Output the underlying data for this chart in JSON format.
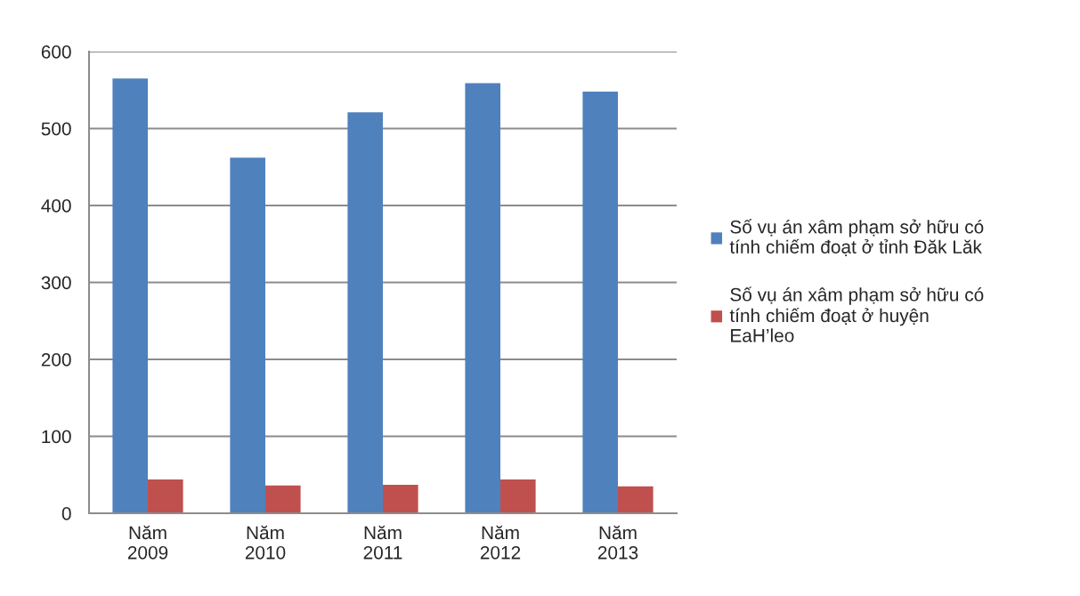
{
  "chart_data": {
    "type": "bar",
    "categories": [
      "Năm 2009",
      "Năm 2010",
      "Năm 2011",
      "Năm 2012",
      "Năm 2013"
    ],
    "series": [
      {
        "name": "Số vụ án xâm phạm sở hữu có tính chiếm đoạt ở tỉnh Đăk Lăk",
        "color": "#4f81bd",
        "values": [
          565,
          462,
          521,
          559,
          548
        ]
      },
      {
        "name": "Số vụ án xâm phạm sở hữu có tính chiếm đoạt ở huyện EaH’leo",
        "color": "#c0504d",
        "values": [
          44,
          36,
          37,
          44,
          35
        ]
      }
    ],
    "ylim": [
      0,
      600
    ],
    "yticks": [
      0,
      100,
      200,
      300,
      400,
      500,
      600
    ],
    "grid": "y",
    "legend": "right"
  }
}
